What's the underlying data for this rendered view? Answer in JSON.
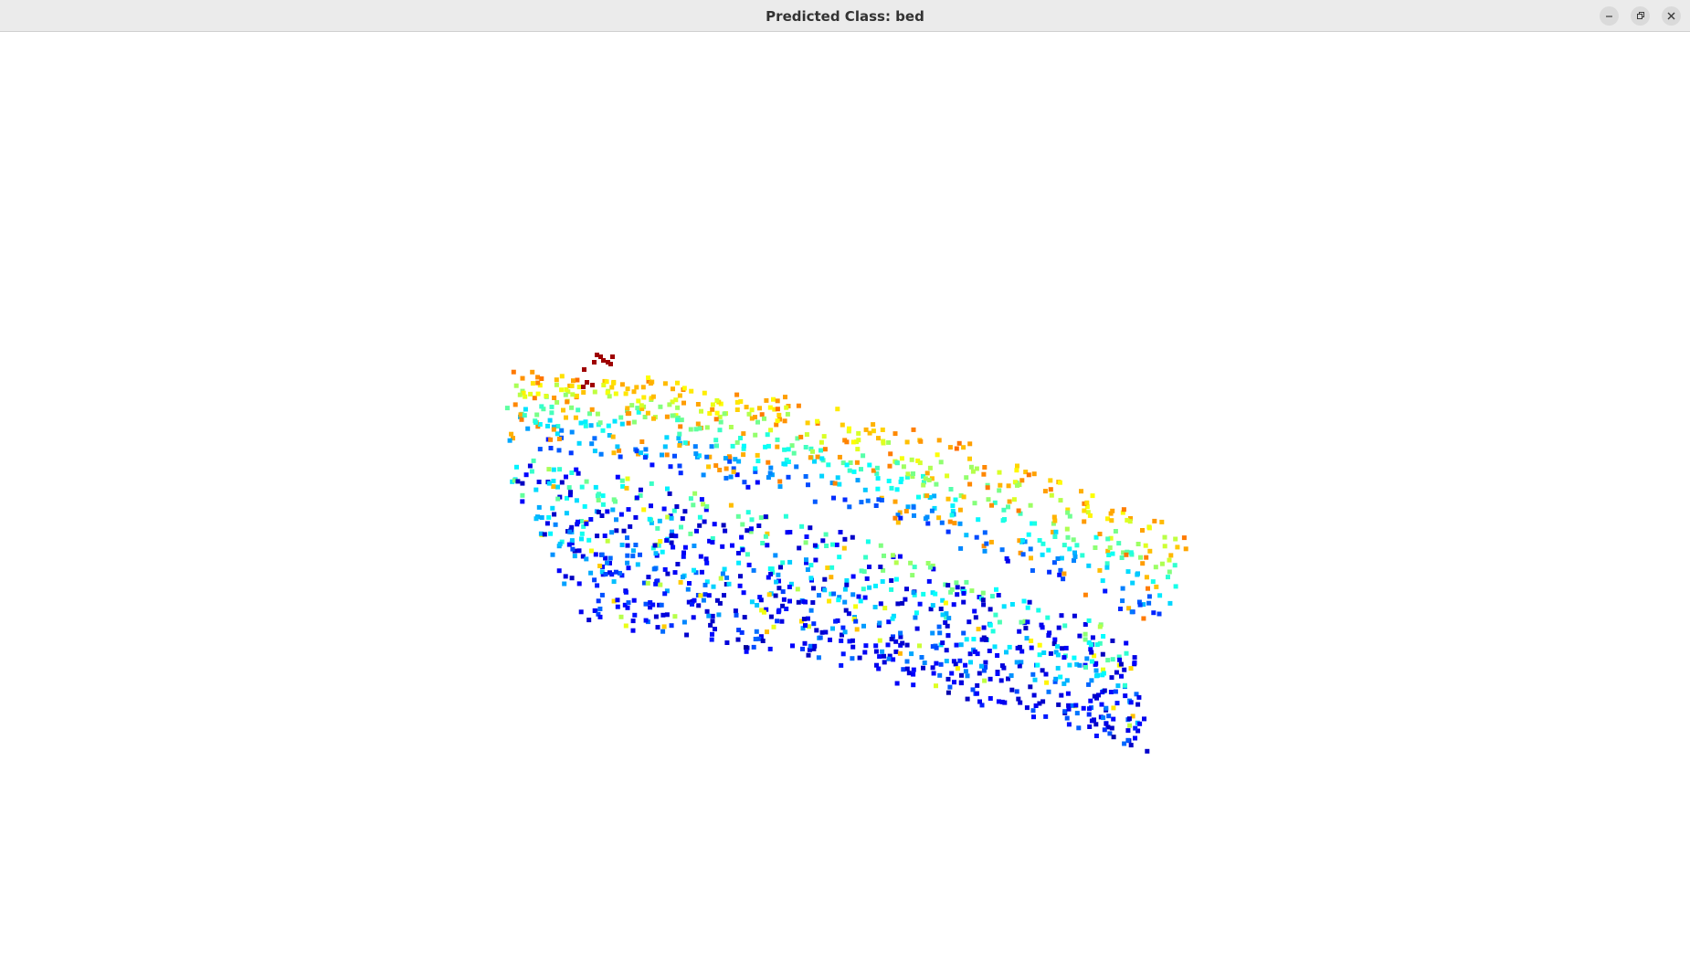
{
  "window": {
    "title": "Predicted Class: bed",
    "controls": [
      {
        "name": "minimize-button",
        "icon": "minimize-icon"
      },
      {
        "name": "maximize-button",
        "icon": "restore-icon"
      },
      {
        "name": "close-button",
        "icon": "close-icon"
      }
    ]
  },
  "view": {
    "kind": "point-cloud",
    "colormap": "jet",
    "background": "#ffffff"
  }
}
